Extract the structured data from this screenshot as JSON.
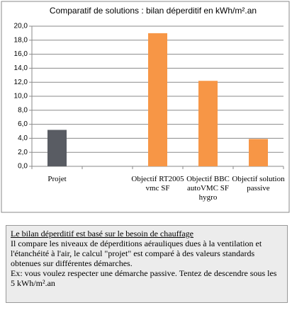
{
  "chart_data": {
    "type": "bar",
    "title": "Comparatif de solutions : bilan déperditif en kWh/m².an",
    "categories": [
      "Projet",
      null,
      "Objectif RT2005 vmc SF",
      "Objectif BBC autoVMC SF hygro",
      "Objectif solution passive"
    ],
    "values": [
      5.2,
      null,
      19.0,
      12.2,
      3.9
    ],
    "colors": [
      "#595c63",
      null,
      "#f79646",
      "#f79646",
      "#f79646"
    ],
    "ylim": [
      0,
      20
    ],
    "yticks": [
      {
        "value": 0,
        "label": "0,0"
      },
      {
        "value": 2,
        "label": "2,0"
      },
      {
        "value": 4,
        "label": "4,0"
      },
      {
        "value": 6,
        "label": "6,0"
      },
      {
        "value": 8,
        "label": "8,0"
      },
      {
        "value": 10,
        "label": "10,0"
      },
      {
        "value": 12,
        "label": "12,0"
      },
      {
        "value": 14,
        "label": "14,0"
      },
      {
        "value": 16,
        "label": "16,0"
      },
      {
        "value": 18,
        "label": "18,0"
      },
      {
        "value": 20,
        "label": "20,0"
      }
    ],
    "grid": true
  },
  "note": {
    "heading": "Le bilan déperditif est basé sur le besoin de chauffage",
    "paragraphs": [
      "Il compare les niveaux de déperditions aérauliques dues à la ventilation et l'étanchéité à l'air, le calcul \"projet\" est comparé à des valeurs standards obtenues sur différentes démarches.",
      "Ex: vous voulez respecter une démarche passive. Tentez de descendre sous les 5 kWh/m².an"
    ]
  }
}
